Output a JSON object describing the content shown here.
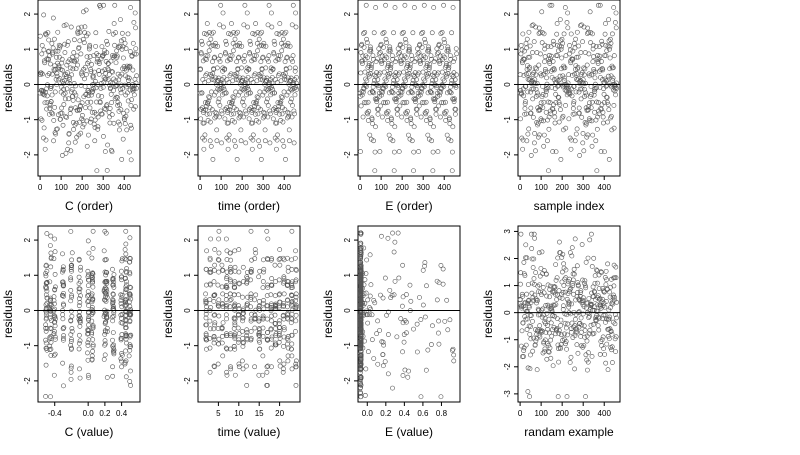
{
  "chart_data": [
    {
      "type": "scatter",
      "xlabel": "C (order)",
      "ylabel": "residuals",
      "xlim": [
        -10,
        475
      ],
      "ylim": [
        -2.6,
        2.4
      ],
      "xticks": [
        "0",
        "100",
        "200",
        "300",
        "400"
      ],
      "xtick_values": [
        0,
        100,
        200,
        300,
        400
      ],
      "yticks": [
        "-2",
        "-1",
        "0",
        "1",
        "2"
      ],
      "ytick_values": [
        -2,
        -1,
        0,
        1,
        2
      ],
      "hline": 0,
      "n_points": 460,
      "gen": "order"
    },
    {
      "type": "scatter",
      "xlabel": "time (order)",
      "ylabel": "residuals",
      "xlim": [
        -10,
        475
      ],
      "ylim": [
        -2.6,
        2.4
      ],
      "xticks": [
        "0",
        "100",
        "200",
        "300",
        "400"
      ],
      "xtick_values": [
        0,
        100,
        200,
        300,
        400
      ],
      "yticks": [
        "-2",
        "-1",
        "0",
        "1",
        "2"
      ],
      "ytick_values": [
        -2,
        -1,
        0,
        1,
        2
      ],
      "hline": 0,
      "n_points": 460,
      "gen": "order"
    },
    {
      "type": "scatter",
      "xlabel": "E (order)",
      "ylabel": "residuals",
      "xlim": [
        -10,
        475
      ],
      "ylim": [
        -2.6,
        2.4
      ],
      "xticks": [
        "0",
        "100",
        "200",
        "300",
        "400"
      ],
      "xtick_values": [
        0,
        100,
        200,
        300,
        400
      ],
      "yticks": [
        "-2",
        "-1",
        "0",
        "1",
        "2"
      ],
      "ytick_values": [
        -2,
        -1,
        0,
        1,
        2
      ],
      "hline": 0,
      "n_points": 460,
      "gen": "order"
    },
    {
      "type": "scatter",
      "xlabel": "sample index",
      "ylabel": "residuals",
      "xlim": [
        -10,
        475
      ],
      "ylim": [
        -2.6,
        2.4
      ],
      "xticks": [
        "0",
        "100",
        "200",
        "300",
        "400"
      ],
      "xtick_values": [
        0,
        100,
        200,
        300,
        400
      ],
      "yticks": [
        "-2",
        "-1",
        "0",
        "1",
        "2"
      ],
      "ytick_values": [
        -2,
        -1,
        0,
        1,
        2
      ],
      "hline": 0,
      "n_points": 460,
      "gen": "order"
    },
    {
      "type": "scatter",
      "xlabel": "C (value)",
      "ylabel": "residuals",
      "xlim": [
        -0.6,
        0.62
      ],
      "ylim": [
        -2.6,
        2.4
      ],
      "xticks": [
        "-0.4",
        "0.0",
        "0.2",
        "0.4"
      ],
      "xtick_values": [
        -0.4,
        0.0,
        0.2,
        0.4
      ],
      "yticks": [
        "-2",
        "-1",
        "0",
        "1",
        "2"
      ],
      "ytick_values": [
        -2,
        -1,
        0,
        1,
        2
      ],
      "hline": 0,
      "n_points": 460,
      "gen": "cvalue"
    },
    {
      "type": "scatter",
      "xlabel": "time (value)",
      "ylabel": "residuals",
      "xlim": [
        0,
        25
      ],
      "ylim": [
        -2.6,
        2.4
      ],
      "xticks": [
        "5",
        "10",
        "15",
        "20"
      ],
      "xtick_values": [
        5,
        10,
        15,
        20
      ],
      "yticks": [
        "-2",
        "-1",
        "0",
        "1",
        "2"
      ],
      "ytick_values": [
        -2,
        -1,
        0,
        1,
        2
      ],
      "hline": 0,
      "n_points": 460,
      "gen": "tvalue"
    },
    {
      "type": "scatter",
      "xlabel": "E (value)",
      "ylabel": "residuals",
      "xlim": [
        -0.1,
        1.0
      ],
      "ylim": [
        -2.6,
        2.4
      ],
      "xticks": [
        "0.0",
        "0.2",
        "0.4",
        "0.6",
        "0.8"
      ],
      "xtick_values": [
        0.0,
        0.2,
        0.4,
        0.6,
        0.8
      ],
      "yticks": [
        "-2",
        "-1",
        "0",
        "1",
        "2"
      ],
      "ytick_values": [
        -2,
        -1,
        0,
        1,
        2
      ],
      "hline": 0,
      "n_points": 460,
      "gen": "evalue"
    },
    {
      "type": "scatter",
      "xlabel": "randam example",
      "ylabel": "residuals",
      "xlim": [
        -10,
        475
      ],
      "ylim": [
        -3.3,
        3.2
      ],
      "xticks": [
        "0",
        "100",
        "200",
        "300",
        "400"
      ],
      "xtick_values": [
        0,
        100,
        200,
        300,
        400
      ],
      "yticks": [
        "-3",
        "-2",
        "-1",
        "0",
        "1",
        "2",
        "3"
      ],
      "ytick_values": [
        -3,
        -2,
        -1,
        0,
        1,
        2,
        3
      ],
      "hline": 0,
      "n_points": 460,
      "gen": "random"
    }
  ]
}
